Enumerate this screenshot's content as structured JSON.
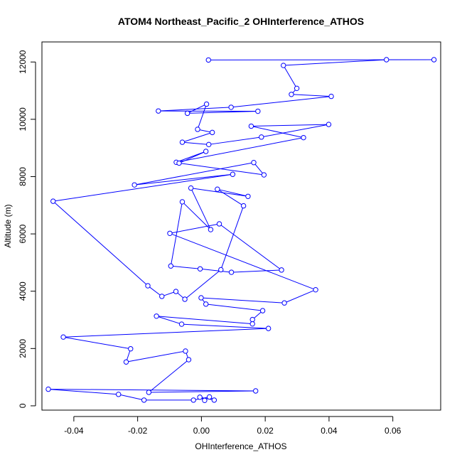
{
  "chart_data": {
    "type": "line",
    "title": "ATOM4 Northeast_Pacific_2 OHInterference_ATHOS",
    "xlabel": "OHInterference_ATHOS",
    "ylabel": "Altitude (m)",
    "xlim": [
      -0.05,
      0.075
    ],
    "ylim": [
      -150,
      12700
    ],
    "x_ticks": [
      -0.04,
      -0.02,
      0.0,
      0.02,
      0.04,
      0.06
    ],
    "x_tick_labels": [
      "-0.04",
      "-0.02",
      "0.00",
      "0.02",
      "0.04",
      "0.06"
    ],
    "y_ticks": [
      0,
      2000,
      4000,
      6000,
      8000,
      10000,
      12000
    ],
    "y_tick_labels": [
      "0",
      "2000",
      "4000",
      "6000",
      "8000",
      "10000",
      "12000"
    ],
    "grid": false,
    "series": [
      {
        "color": "#0000ff",
        "marker": "open-circle",
        "x": [
          0.0022,
          0.0729,
          0.058,
          0.0257,
          0.0299,
          0.0282,
          0.0407,
          0.0093,
          -0.0135,
          0.0177,
          -0.0044,
          0.0016,
          -0.0012,
          0.0034,
          -0.006,
          0.0023,
          0.0188,
          0.0399,
          0.0156,
          0.032,
          -0.0079,
          0.0014,
          -0.007,
          0.0196,
          0.0164,
          -0.021,
          0.0098,
          -0.0465,
          -0.0168,
          -0.0124,
          -0.008,
          -0.0052,
          0.0061,
          0.0132,
          0.005,
          0.0146,
          -0.0033,
          0.0029,
          -0.006,
          -0.0096,
          -0.0004,
          0.0094,
          0.0251,
          0.0056,
          -0.0099,
          0.0358,
          0.026,
          -0.0001,
          0.0014,
          0.0192,
          0.016,
          0.016,
          -0.0141,
          -0.0062,
          0.021,
          -0.0433,
          -0.0222,
          -0.0236,
          -0.005,
          -0.004,
          -0.0165,
          0.017,
          -0.048,
          -0.026,
          -0.018,
          -0.0025,
          0.0025,
          0.004,
          -0.0005,
          0.001
        ],
        "y": [
          12070,
          12080,
          12080,
          11880,
          11080,
          10870,
          10800,
          10420,
          10290,
          10280,
          10210,
          10530,
          9650,
          9540,
          9200,
          9120,
          9380,
          9820,
          9760,
          9360,
          8500,
          8880,
          8470,
          8060,
          8490,
          7710,
          8080,
          7140,
          4190,
          3820,
          3990,
          3720,
          4750,
          6980,
          7560,
          7310,
          7600,
          6150,
          7120,
          4880,
          4780,
          4660,
          4740,
          6350,
          6020,
          4050,
          3590,
          3770,
          3550,
          3320,
          3010,
          2860,
          3130,
          2850,
          2700,
          2400,
          1990,
          1530,
          1910,
          1610,
          470,
          520,
          580,
          400,
          200,
          200,
          310,
          200,
          300,
          190
        ]
      }
    ]
  }
}
